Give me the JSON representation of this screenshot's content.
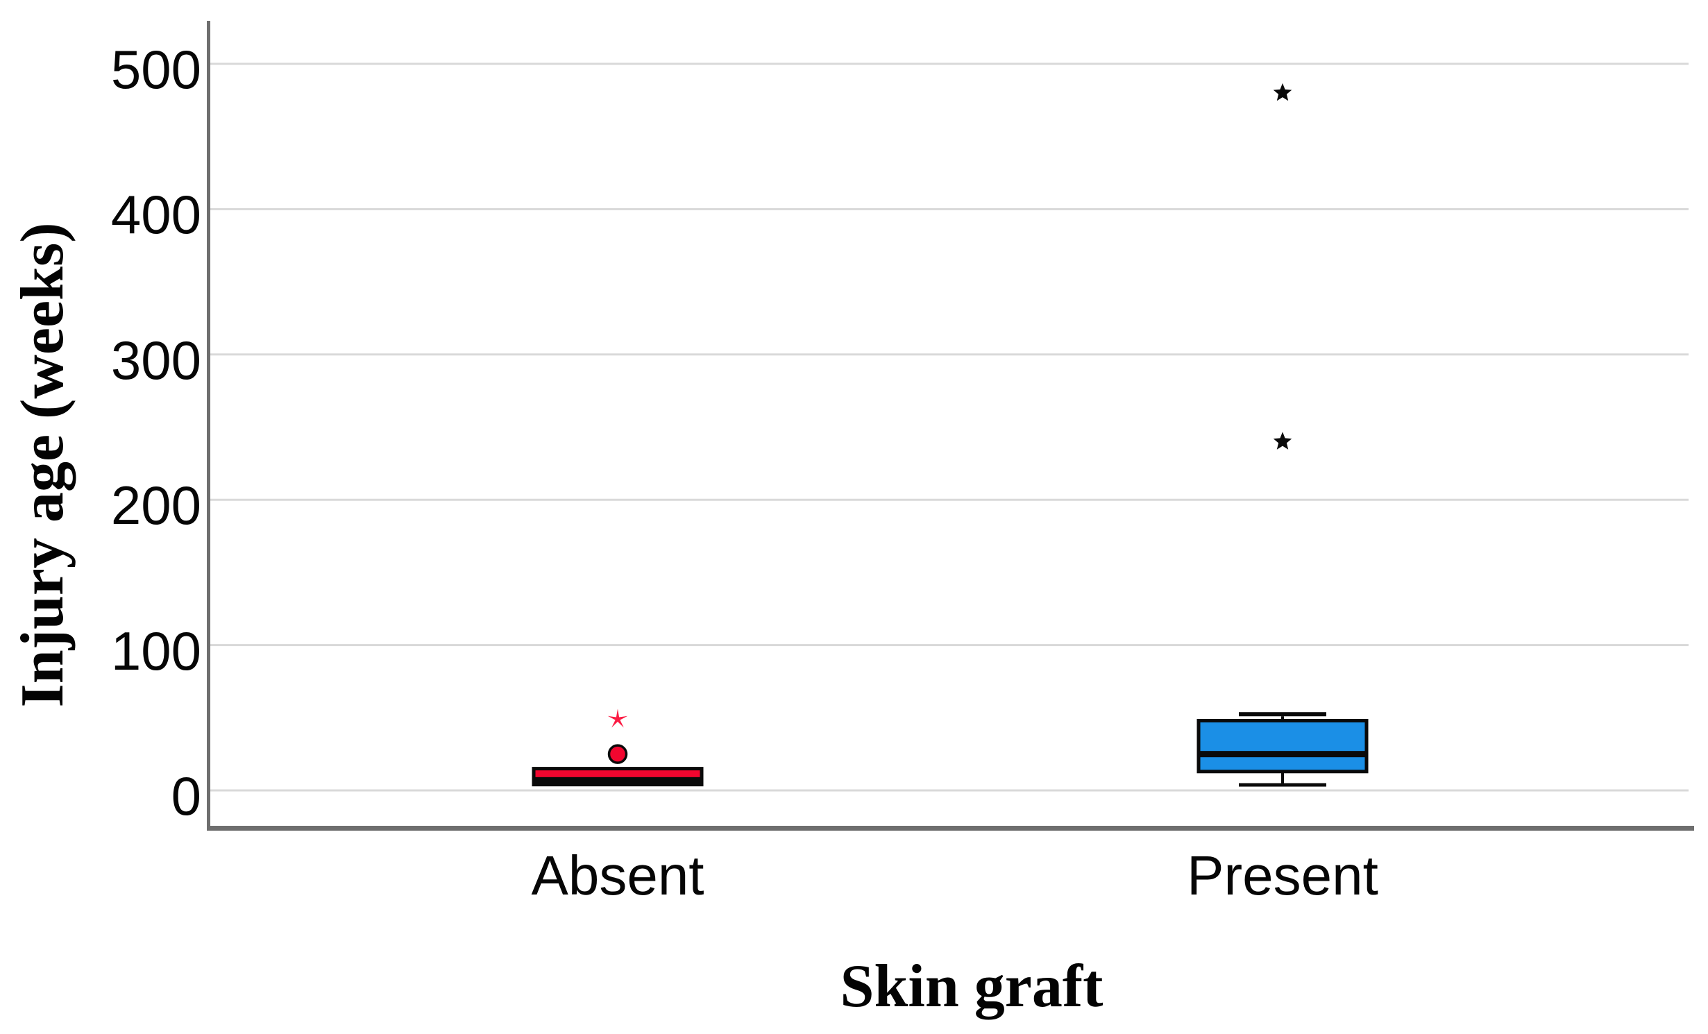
{
  "figure": {
    "background": "#ffffff"
  },
  "chart_data": {
    "type": "boxplot",
    "title": "",
    "xlabel": "Skin graft",
    "ylabel": "Injury age (weeks)",
    "ylim": [
      0,
      500
    ],
    "y_ticks": [
      0,
      100,
      200,
      300,
      400,
      500
    ],
    "grid": "horizontal-light-gray",
    "legend": "none",
    "categories": [
      "Absent",
      "Present"
    ],
    "series": [
      {
        "category": "Absent",
        "box_color": "#F2062F",
        "q1": 4,
        "median": 7,
        "q3": 15,
        "whisker_low": null,
        "whisker_high": null,
        "outliers": [
          {
            "value": 25,
            "marker": "circle",
            "color": "#F2062F"
          },
          {
            "value": 49,
            "marker": "asterisk",
            "color": "#FB1C44"
          }
        ]
      },
      {
        "category": "Present",
        "box_color": "#1B8FE6",
        "q1": 13,
        "median": 25,
        "q3": 48,
        "whisker_low": 5,
        "whisker_high": 51,
        "outliers": [
          {
            "value": 240,
            "marker": "asterisk",
            "color": "#0A0A0A"
          },
          {
            "value": 480,
            "marker": "asterisk",
            "color": "#0A0A0A"
          }
        ]
      }
    ],
    "colors": {
      "gridline": "#D9D9D9",
      "axis": "#6E6E6E",
      "box_border": "#0A0A0A",
      "median_line": "#0A0A0A",
      "tick_text": "#060606"
    }
  }
}
